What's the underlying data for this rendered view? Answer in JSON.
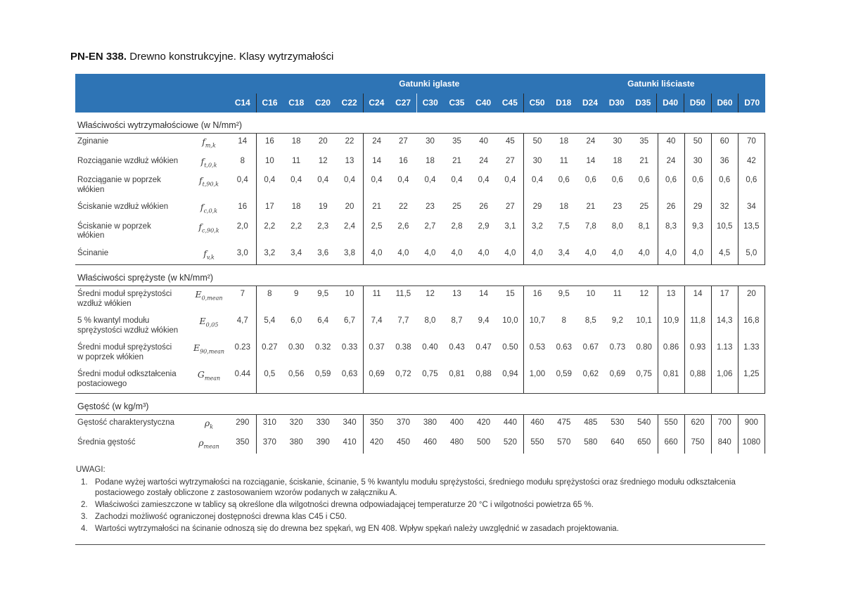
{
  "title": {
    "code": "PN-EN 338.",
    "text": " Drewno konstrukcyjne. Klasy wytrzymałości"
  },
  "header": {
    "group_left": "Gatunki iglaste",
    "group_right": "Gatunki liściaste",
    "classes": [
      "C14",
      "C16",
      "C18",
      "C20",
      "C22",
      "C24",
      "C27",
      "C30",
      "C35",
      "C40",
      "C45",
      "C50",
      "D18",
      "D24",
      "D30",
      "D35",
      "D40",
      "D50",
      "D60",
      "D70"
    ]
  },
  "sections": [
    {
      "title": "Właściwości wytrzymałościowe (w N/mm²)",
      "rows": [
        {
          "label": "Zginanie",
          "symbol": {
            "base": "f",
            "sub": "m,k"
          },
          "values": [
            "14",
            "16",
            "18",
            "20",
            "22",
            "24",
            "27",
            "30",
            "35",
            "40",
            "45",
            "50",
            "18",
            "24",
            "30",
            "35",
            "40",
            "50",
            "60",
            "70"
          ]
        },
        {
          "label": "Rozciąganie wzdłuż włókien",
          "symbol": {
            "base": "f",
            "sub": "t,0,k"
          },
          "values": [
            "8",
            "10",
            "11",
            "12",
            "13",
            "14",
            "16",
            "18",
            "21",
            "24",
            "27",
            "30",
            "11",
            "14",
            "18",
            "21",
            "24",
            "30",
            "36",
            "42"
          ]
        },
        {
          "label": "Rozciąganie w poprzek włókien",
          "symbol": {
            "base": "f",
            "sub": "t,90,k"
          },
          "values": [
            "0,4",
            "0,4",
            "0,4",
            "0,4",
            "0,4",
            "0,4",
            "0,4",
            "0,4",
            "0,4",
            "0,4",
            "0,4",
            "0,4",
            "0,6",
            "0,6",
            "0,6",
            "0,6",
            "0,6",
            "0,6",
            "0,6",
            "0,6"
          ]
        },
        {
          "label": "Ściskanie wzdłuż włókien",
          "symbol": {
            "base": "f",
            "sub": "c,0,k"
          },
          "values": [
            "16",
            "17",
            "18",
            "19",
            "20",
            "21",
            "22",
            "23",
            "25",
            "26",
            "27",
            "29",
            "18",
            "21",
            "23",
            "25",
            "26",
            "29",
            "32",
            "34"
          ]
        },
        {
          "label": "Ściskanie w poprzek włókien",
          "symbol": {
            "base": "f",
            "sub": "c,90,k"
          },
          "values": [
            "2,0",
            "2,2",
            "2,2",
            "2,3",
            "2,4",
            "2,5",
            "2,6",
            "2,7",
            "2,8",
            "2,9",
            "3,1",
            "3,2",
            "7,5",
            "7,8",
            "8,0",
            "8,1",
            "8,3",
            "9,3",
            "10,5",
            "13,5"
          ]
        },
        {
          "label": "Ścinanie",
          "symbol": {
            "base": "f",
            "sub": "v,k"
          },
          "values": [
            "3,0",
            "3,2",
            "3,4",
            "3,6",
            "3,8",
            "4,0",
            "4,0",
            "4,0",
            "4,0",
            "4,0",
            "4,0",
            "4,0",
            "3,4",
            "4,0",
            "4,0",
            "4,0",
            "4,0",
            "4,0",
            "4,5",
            "5,0"
          ]
        }
      ]
    },
    {
      "title": "Właściwości sprężyste (w kN/mm²)",
      "rows": [
        {
          "label": "Średni moduł sprężystości wzdłuż włókien",
          "symbol": {
            "base": "E",
            "sub": "0,mean"
          },
          "values": [
            "7",
            "8",
            "9",
            "9,5",
            "10",
            "11",
            "11,5",
            "12",
            "13",
            "14",
            "15",
            "16",
            "9,5",
            "10",
            "11",
            "12",
            "13",
            "14",
            "17",
            "20"
          ]
        },
        {
          "label": "5 % kwantyl modułu sprężystości wzdłuż włókien",
          "symbol": {
            "base": "E",
            "sub": "0,05"
          },
          "values": [
            "4,7",
            "5,4",
            "6,0",
            "6,4",
            "6,7",
            "7,4",
            "7,7",
            "8,0",
            "8,7",
            "9,4",
            "10,0",
            "10,7",
            "8",
            "8,5",
            "9,2",
            "10,1",
            "10,9",
            "11,8",
            "14,3",
            "16,8"
          ]
        },
        {
          "label": "Średni moduł sprężystości w poprzek włókien",
          "symbol": {
            "base": "E",
            "sub": "90,mean"
          },
          "values": [
            "0.23",
            "0.27",
            "0.30",
            "0.32",
            "0.33",
            "0.37",
            "0.38",
            "0.40",
            "0.43",
            "0.47",
            "0.50",
            "0.53",
            "0.63",
            "0.67",
            "0.73",
            "0.80",
            "0.86",
            "0.93",
            "1.13",
            "1.33"
          ]
        },
        {
          "label": "Średni moduł odkształcenia postaciowego",
          "symbol": {
            "base": "G",
            "sub": "mean"
          },
          "values": [
            "0.44",
            "0,5",
            "0,56",
            "0,59",
            "0,63",
            "0,69",
            "0,72",
            "0,75",
            "0,81",
            "0,88",
            "0,94",
            "1,00",
            "0,59",
            "0,62",
            "0,69",
            "0,75",
            "0,81",
            "0,88",
            "1,06",
            "1,25"
          ]
        }
      ]
    },
    {
      "title": "Gęstość (w kg/m³)",
      "rows": [
        {
          "label": "Gęstość charakterystyczna",
          "symbol": {
            "base": "ρ",
            "sub": "k"
          },
          "values": [
            "290",
            "310",
            "320",
            "330",
            "340",
            "350",
            "370",
            "380",
            "400",
            "420",
            "440",
            "460",
            "475",
            "485",
            "530",
            "540",
            "550",
            "620",
            "700",
            "900"
          ]
        },
        {
          "label": "Średnia gęstość",
          "symbol": {
            "base": "ρ",
            "sub": "mean"
          },
          "values": [
            "350",
            "370",
            "380",
            "390",
            "410",
            "420",
            "450",
            "460",
            "480",
            "500",
            "520",
            "550",
            "570",
            "580",
            "640",
            "650",
            "660",
            "750",
            "840",
            "1080"
          ]
        }
      ]
    }
  ],
  "notes": {
    "heading": "UWAGI:",
    "items": [
      "Podane wyżej wartości wytrzymałości na rozciąganie, ściskanie, ścinanie, 5 % kwantylu modułu sprężystości, średniego modułu sprężystości oraz średniego modułu odkształcenia postaciowego zostały obliczone z zastosowaniem wzorów podanych w załączniku A.",
      "Właściwości zamieszczone w tablicy są określone dla wilgotności drewna odpowiadającej temperaturze 20 °C i wilgotności powietrza 65 %.",
      "Zachodzi możliwość ograniczonej dostępności drewna klas C45 i C50.",
      "Wartości wytrzymałości na ścinanie odnoszą się do drewna bez spękań, wg EN 408. Wpływ spękań należy uwzględnić w zasadach projektowania."
    ]
  },
  "colors": {
    "header_blue": "#2e74b5"
  }
}
